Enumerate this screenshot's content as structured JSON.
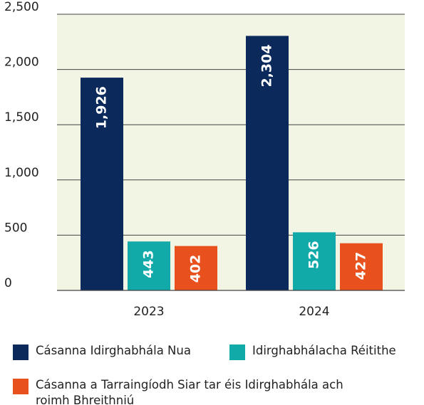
{
  "chart_data": {
    "type": "bar",
    "categories": [
      "2023",
      "2024"
    ],
    "series": [
      {
        "name": "Cásanna Idirghabhála Nua",
        "color": "#0b2a5b",
        "values": [
          1926,
          2304
        ],
        "value_labels": [
          "1,926",
          "2,304"
        ]
      },
      {
        "name": "Idirghabhálacha Réitithe",
        "color": "#12aaa8",
        "values": [
          443,
          526
        ],
        "value_labels": [
          "443",
          "526"
        ]
      },
      {
        "name": "Cásanna a Tarraingíodh Siar tar éis Idirghabhála ach roimh Bhreithniú",
        "color": "#e8501e",
        "values": [
          402,
          427
        ],
        "value_labels": [
          "402",
          "427"
        ]
      }
    ],
    "ylim": [
      0,
      2500
    ],
    "yticks": [
      0,
      500,
      {
        "value": 1000,
        "label": "1,000"
      },
      {
        "value": 1500,
        "label": "1,500"
      },
      {
        "value": 2000,
        "label": "2,000"
      },
      {
        "value": 2500,
        "label": "2,500"
      }
    ],
    "grid": true,
    "legend": "bottom"
  }
}
